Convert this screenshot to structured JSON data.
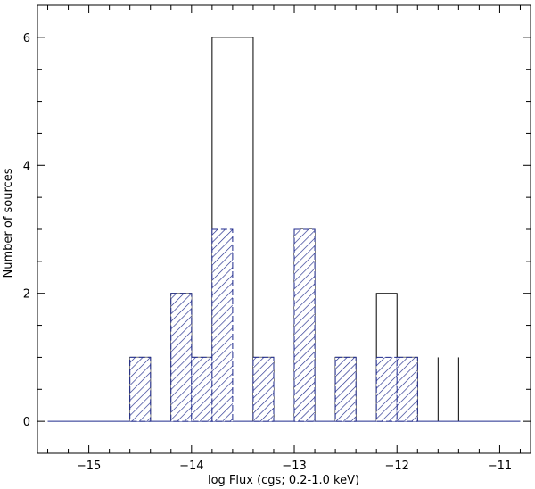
{
  "chart_data": {
    "type": "bar",
    "xlabel": "log Flux (cgs; 0.2-1.0 keV)",
    "ylabel": "Number of sources",
    "xlim": [
      -15.5,
      -10.7
    ],
    "ylim": [
      -0.5,
      6.5
    ],
    "xticks": [
      -15,
      -14,
      -13,
      -12,
      -11
    ],
    "xtick_labels": [
      "−15",
      "−14",
      "−13",
      "−12",
      "−11"
    ],
    "yticks": [
      0,
      2,
      4,
      6
    ],
    "ytick_labels": [
      "0",
      "2",
      "4",
      "6"
    ],
    "grid": false,
    "series": [
      {
        "style": "outline",
        "color": "#000000",
        "bins": [
          {
            "x0": -14.6,
            "x1": -14.4,
            "y": 1
          },
          {
            "x0": -14.2,
            "x1": -14.0,
            "y": 2
          },
          {
            "x0": -14.0,
            "x1": -13.8,
            "y": 1
          },
          {
            "x0": -13.8,
            "x1": -13.4,
            "y": 6
          },
          {
            "x0": -13.4,
            "x1": -13.2,
            "y": 1
          },
          {
            "x0": -13.0,
            "x1": -12.8,
            "y": 3
          },
          {
            "x0": -12.6,
            "x1": -12.4,
            "y": 1
          },
          {
            "x0": -12.2,
            "x1": -12.0,
            "y": 2
          },
          {
            "x0": -12.0,
            "x1": -11.8,
            "y": 1
          },
          {
            "x0": -11.6,
            "x1": -11.6,
            "y": 1
          },
          {
            "x0": -11.4,
            "x1": -11.4,
            "y": 1
          }
        ]
      },
      {
        "style": "hatched",
        "color": "#1f2a8c",
        "bins": [
          {
            "x0": -14.6,
            "x1": -14.4,
            "y": 1
          },
          {
            "x0": -14.2,
            "x1": -14.0,
            "y": 2
          },
          {
            "x0": -14.0,
            "x1": -13.8,
            "y": 1
          },
          {
            "x0": -13.8,
            "x1": -13.6,
            "y": 3
          },
          {
            "x0": -13.4,
            "x1": -13.2,
            "y": 1
          },
          {
            "x0": -13.0,
            "x1": -12.8,
            "y": 3
          },
          {
            "x0": -12.6,
            "x1": -12.4,
            "y": 1
          },
          {
            "x0": -12.2,
            "x1": -12.0,
            "y": 1
          },
          {
            "x0": -12.0,
            "x1": -11.8,
            "y": 1
          }
        ]
      }
    ]
  }
}
